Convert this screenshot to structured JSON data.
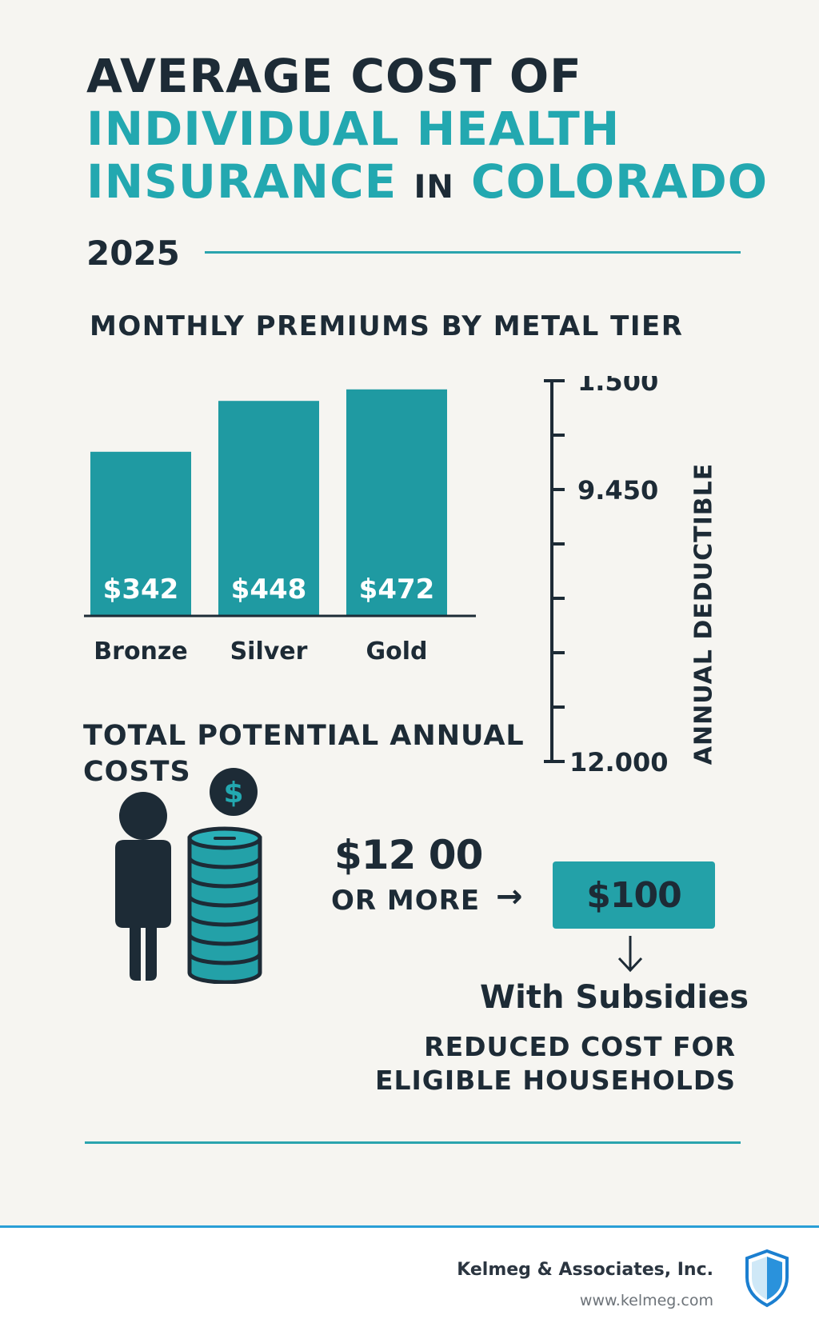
{
  "title": {
    "line1": "AVERAGE COST OF",
    "line2": "INDIVIDUAL HEALTH",
    "line3_a": "INSURANCE",
    "line3_b": "IN",
    "line3_c": "COLORADO",
    "year": "2025"
  },
  "colors": {
    "accent": "#23a8b0",
    "bar": "#1f9aa2",
    "dark": "#1d2b36",
    "background": "#f6f5f1",
    "footer_line": "#2a9fd6"
  },
  "chart_data": {
    "type": "bar",
    "title": "MONTHLY PREMIUMS BY METAL TIER",
    "categories": [
      "Bronze",
      "Silver",
      "Gold"
    ],
    "values": [
      342,
      448,
      472
    ],
    "value_labels": [
      "$342",
      "$448",
      "$472"
    ],
    "xlabel": "",
    "ylabel": "",
    "grid": false,
    "deductible_scale": {
      "title": "ANNUAL DEDUCTIBLE",
      "labels": [
        "1.500",
        "9.450",
        "12.000"
      ],
      "label_positions": [
        0,
        2,
        7
      ],
      "tick_count": 8
    }
  },
  "totals": {
    "title": "TOTAL POTENTIAL ANNUAL COSTS",
    "amount": "$12 00",
    "qualifier": "OR MORE",
    "arrow": "→",
    "subsidized_amount": "$100",
    "down_arrow": "↓",
    "subsidy_label": "With Subsidies",
    "subsidy_note_line1": "REDUCED COST FOR",
    "subsidy_note_line2": "ELIGIBLE HOUSEHOLDS",
    "person_icon": "person-icon",
    "coins_icon": "coin-stack-icon",
    "dollar_icon": "dollar-coin-icon"
  },
  "footer": {
    "company": "Kelmeg & Associates, Inc.",
    "website": "www.kelmeg.com",
    "logo_icon": "shield-icon"
  }
}
